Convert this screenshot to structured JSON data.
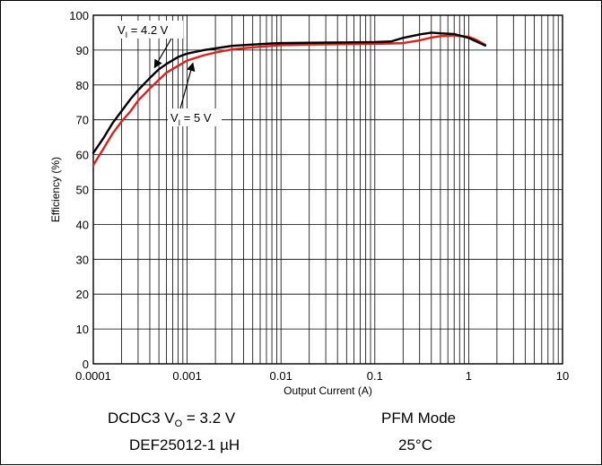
{
  "chart_data": {
    "type": "line",
    "xlabel": "Output Current (A)",
    "ylabel": "Efficiency (%)",
    "xscale": "log",
    "xlim": [
      0.0001,
      10
    ],
    "ylim": [
      0,
      100
    ],
    "x_tick_labels": [
      "0.0001",
      "0.001",
      "0.01",
      "0.1",
      "1",
      "10"
    ],
    "y_tick_labels": [
      "0",
      "10",
      "20",
      "30",
      "40",
      "50",
      "60",
      "70",
      "80",
      "90",
      "100"
    ],
    "grid": true,
    "series": [
      {
        "name": "VI = 4.2 V",
        "color": "#000000",
        "x": [
          0.0001,
          0.00013,
          0.00016,
          0.0002,
          0.00025,
          0.0003,
          0.0004,
          0.0005,
          0.0006,
          0.0008,
          0.001,
          0.0015,
          0.002,
          0.003,
          0.005,
          0.008,
          0.01,
          0.02,
          0.05,
          0.1,
          0.15,
          0.2,
          0.3,
          0.4,
          0.5,
          0.7,
          1.0,
          1.2,
          1.5
        ],
        "y": [
          60.5,
          65,
          69,
          72.5,
          76,
          78.5,
          82,
          84.5,
          86,
          88,
          89,
          90,
          90.5,
          91.2,
          91.6,
          91.9,
          92,
          92.1,
          92.2,
          92.3,
          92.5,
          93.5,
          94.5,
          95,
          94.8,
          94.6,
          93.5,
          92.5,
          91.3
        ]
      },
      {
        "name": "VI = 5 V",
        "color": "#e0201b",
        "x": [
          0.0001,
          0.00013,
          0.00016,
          0.0002,
          0.00025,
          0.0003,
          0.0004,
          0.0005,
          0.0006,
          0.0008,
          0.001,
          0.0015,
          0.002,
          0.003,
          0.005,
          0.008,
          0.01,
          0.02,
          0.05,
          0.1,
          0.15,
          0.2,
          0.3,
          0.4,
          0.5,
          0.7,
          1.0,
          1.2,
          1.5
        ],
        "y": [
          57,
          62,
          66,
          69.5,
          72.5,
          75.5,
          79,
          81.5,
          83.5,
          85.5,
          87,
          88.5,
          89.3,
          90.2,
          90.8,
          91.2,
          91.4,
          91.6,
          91.7,
          91.8,
          91.9,
          92,
          92.8,
          93.6,
          94,
          94.2,
          93.8,
          93,
          91.5
        ]
      }
    ],
    "annotations": [
      {
        "label": "V",
        "subscript": "I",
        "text_after": " = 4.2 V",
        "series_index": 0
      },
      {
        "label": "V",
        "subscript": "I",
        "text_after": " = 5 V",
        "series_index": 1
      }
    ]
  },
  "captions": {
    "line1_left_prefix": "DCDC3 V",
    "line1_left_sub": "O",
    "line1_left_suffix": " = 3.2 V",
    "line1_right": "PFM Mode",
    "line2_left": "DEF25012-1 µH",
    "line2_right": "25°C"
  }
}
